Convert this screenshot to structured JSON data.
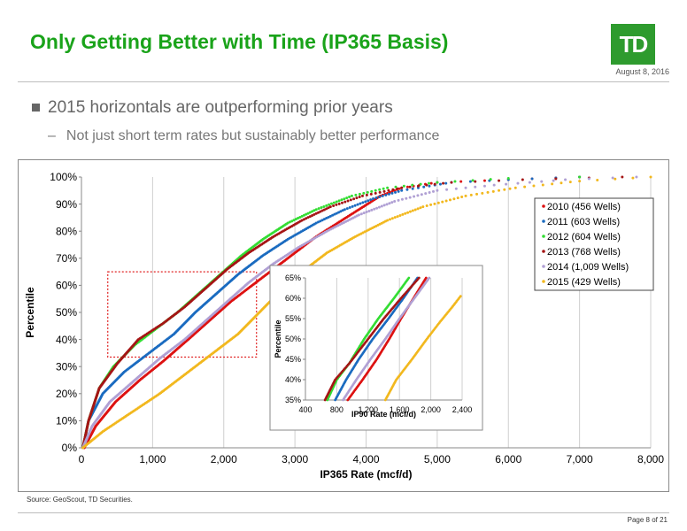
{
  "header": {
    "title": "Only Getting Better with Time (IP365 Basis)",
    "logo_text": "TD",
    "date": "August 8, 2016"
  },
  "bullets": {
    "main": "2015 horizontals are outperforming prior years",
    "dash": "–",
    "sub": "Not just short term rates but sustainably better performance"
  },
  "chart_data": [
    {
      "type": "scatter",
      "xlabel": "IP365 Rate (mcf/d)",
      "ylabel": "Percentile",
      "xlim": [
        0,
        8000
      ],
      "ylim": [
        0,
        100
      ],
      "x_ticks": [
        0,
        1000,
        2000,
        3000,
        4000,
        5000,
        6000,
        7000,
        8000
      ],
      "x_tick_labels": [
        "0",
        "1,000",
        "2,000",
        "3,000",
        "4,000",
        "5,000",
        "6,000",
        "7,000",
        "8,000"
      ],
      "y_ticks": [
        0,
        10,
        20,
        30,
        40,
        50,
        60,
        70,
        80,
        90,
        100
      ],
      "y_tick_labels": [
        "0%",
        "10%",
        "20%",
        "30%",
        "40%",
        "50%",
        "60%",
        "70%",
        "80%",
        "90%",
        "100%"
      ],
      "grid": "vertical",
      "legend_position": "top-right",
      "highlight_box": {
        "x": [
          370,
          2460
        ],
        "y": [
          33.5,
          65
        ]
      },
      "series": [
        {
          "name": "2010 (456 Wells)",
          "color": "#dd1111",
          "points": [
            [
              40,
              0
            ],
            [
              200,
              8
            ],
            [
              480,
              17
            ],
            [
              820,
              25
            ],
            [
              1150,
              32
            ],
            [
              1500,
              40
            ],
            [
              1800,
              47
            ],
            [
              2100,
              54
            ],
            [
              2400,
              60
            ],
            [
              2700,
              66
            ],
            [
              3000,
              72
            ],
            [
              3300,
              78
            ],
            [
              3600,
              83
            ],
            [
              3900,
              88
            ],
            [
              4200,
              93
            ],
            [
              4500,
              96
            ],
            [
              5000,
              98
            ],
            [
              6000,
              99
            ],
            [
              7000,
              100
            ]
          ]
        },
        {
          "name": "2011 (603 Wells)",
          "color": "#1a6bc0",
          "points": [
            [
              20,
              0
            ],
            [
              100,
              10
            ],
            [
              300,
              20
            ],
            [
              600,
              28
            ],
            [
              950,
              35
            ],
            [
              1300,
              42
            ],
            [
              1600,
              50
            ],
            [
              1900,
              57
            ],
            [
              2200,
              64
            ],
            [
              2550,
              71
            ],
            [
              2900,
              77
            ],
            [
              3300,
              83
            ],
            [
              3700,
              88
            ],
            [
              4100,
              92
            ],
            [
              4500,
              95
            ],
            [
              5200,
              98
            ],
            [
              6000,
              99
            ],
            [
              7000,
              100
            ]
          ]
        },
        {
          "name": "2012 (604 Wells)",
          "color": "#33dd33",
          "points": [
            [
              20,
              0
            ],
            [
              100,
              10
            ],
            [
              250,
              22
            ],
            [
              450,
              30
            ],
            [
              750,
              38
            ],
            [
              1050,
              44
            ],
            [
              1350,
              50
            ],
            [
              1650,
              57
            ],
            [
              1950,
              64
            ],
            [
              2250,
              71
            ],
            [
              2550,
              77
            ],
            [
              2900,
              83
            ],
            [
              3300,
              88
            ],
            [
              3800,
              93
            ],
            [
              4300,
              96
            ],
            [
              5000,
              98
            ],
            [
              6000,
              99.5
            ],
            [
              7000,
              100
            ]
          ]
        },
        {
          "name": "2013 (768 Wells)",
          "color": "#a51515",
          "points": [
            [
              20,
              0
            ],
            [
              100,
              10
            ],
            [
              250,
              22
            ],
            [
              500,
              31
            ],
            [
              800,
              40
            ],
            [
              1150,
              46
            ],
            [
              1450,
              52
            ],
            [
              1750,
              59
            ],
            [
              2050,
              66
            ],
            [
              2350,
              72
            ],
            [
              2700,
              78
            ],
            [
              3100,
              84
            ],
            [
              3500,
              89
            ],
            [
              3950,
              93
            ],
            [
              4500,
              96
            ],
            [
              5200,
              98
            ],
            [
              6200,
              99
            ],
            [
              7600,
              100
            ]
          ]
        },
        {
          "name": "2014 (1,009 Wells)",
          "color": "#b0a0d4",
          "points": [
            [
              20,
              0
            ],
            [
              150,
              8
            ],
            [
              400,
              17
            ],
            [
              750,
              25
            ],
            [
              1100,
              33
            ],
            [
              1450,
              40
            ],
            [
              1750,
              47
            ],
            [
              2050,
              54
            ],
            [
              2350,
              61
            ],
            [
              2700,
              68
            ],
            [
              3050,
              74
            ],
            [
              3450,
              80
            ],
            [
              3900,
              86
            ],
            [
              4400,
              91
            ],
            [
              5000,
              95
            ],
            [
              5800,
              97
            ],
            [
              6800,
              99
            ],
            [
              7800,
              100
            ]
          ]
        },
        {
          "name": "2015 (429 Wells)",
          "color": "#f2b81e",
          "points": [
            [
              20,
              0
            ],
            [
              300,
              6
            ],
            [
              700,
              13
            ],
            [
              1100,
              20
            ],
            [
              1500,
              28
            ],
            [
              1850,
              35
            ],
            [
              2200,
              42
            ],
            [
              2500,
              50
            ],
            [
              2800,
              58
            ],
            [
              3100,
              65
            ],
            [
              3450,
              72
            ],
            [
              3850,
              78
            ],
            [
              4300,
              84
            ],
            [
              4800,
              89
            ],
            [
              5400,
              93
            ],
            [
              6100,
              96
            ],
            [
              7000,
              98.5
            ],
            [
              8000,
              100
            ]
          ]
        }
      ]
    },
    {
      "type": "scatter",
      "xlabel": "IP90 Rate (mcf/d)",
      "ylabel": "Percentile",
      "xlim": [
        400,
        2400
      ],
      "ylim": [
        35,
        65
      ],
      "x_ticks": [
        400,
        800,
        1200,
        1600,
        2000,
        2400
      ],
      "x_tick_labels": [
        "400",
        "800",
        "1,200",
        "1,600",
        "2,000",
        "2,400"
      ],
      "y_ticks": [
        35,
        40,
        45,
        50,
        55,
        60,
        65
      ],
      "y_tick_labels": [
        "35%",
        "40%",
        "45%",
        "50%",
        "55%",
        "60%",
        "65%"
      ],
      "grid": "vertical",
      "series": [
        {
          "name": "2010",
          "color": "#dd1111",
          "points": [
            [
              940,
              35
            ],
            [
              1130,
              40
            ],
            [
              1310,
              45
            ],
            [
              1470,
              50
            ],
            [
              1620,
              55
            ],
            [
              1780,
              60
            ],
            [
              1940,
              65
            ]
          ]
        },
        {
          "name": "2011",
          "color": "#1a6bc0",
          "points": [
            [
              780,
              35
            ],
            [
              920,
              40
            ],
            [
              1080,
              45
            ],
            [
              1260,
              50
            ],
            [
              1460,
              55
            ],
            [
              1650,
              60
            ],
            [
              1830,
              65
            ]
          ]
        },
        {
          "name": "2012",
          "color": "#33dd33",
          "points": [
            [
              680,
              35
            ],
            [
              800,
              40
            ],
            [
              960,
              44
            ],
            [
              1150,
              50
            ],
            [
              1330,
              55
            ],
            [
              1530,
              60
            ],
            [
              1720,
              65
            ]
          ]
        },
        {
          "name": "2013",
          "color": "#a51515",
          "points": [
            [
              650,
              35
            ],
            [
              780,
              40
            ],
            [
              960,
              44
            ],
            [
              1200,
              50
            ],
            [
              1400,
              55
            ],
            [
              1620,
              60
            ],
            [
              1850,
              65
            ]
          ]
        },
        {
          "name": "2014",
          "color": "#b0a0d4",
          "points": [
            [
              880,
              35
            ],
            [
              1050,
              40
            ],
            [
              1230,
              45
            ],
            [
              1420,
              50
            ],
            [
              1600,
              55
            ],
            [
              1790,
              60
            ],
            [
              1980,
              65
            ]
          ]
        },
        {
          "name": "2015",
          "color": "#f2b81e",
          "points": [
            [
              1420,
              35
            ],
            [
              1560,
              40
            ],
            [
              1760,
              45
            ],
            [
              1950,
              50
            ],
            [
              2110,
              54
            ],
            [
              2280,
              58
            ],
            [
              2380,
              60.5
            ]
          ]
        }
      ]
    }
  ],
  "footer": {
    "source": "Source: GeoScout, TD Securities.",
    "page": "Page 8 of 21"
  }
}
